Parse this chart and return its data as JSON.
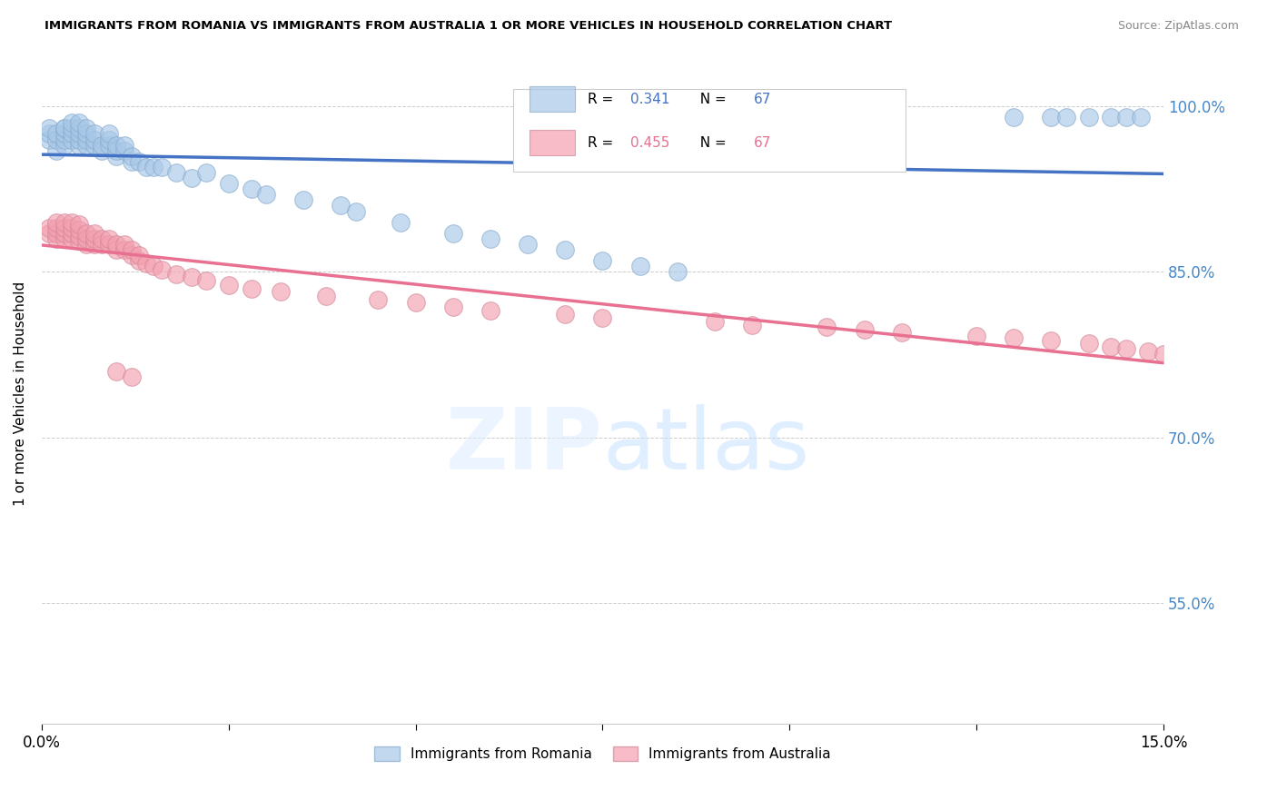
{
  "title": "IMMIGRANTS FROM ROMANIA VS IMMIGRANTS FROM AUSTRALIA 1 OR MORE VEHICLES IN HOUSEHOLD CORRELATION CHART",
  "source": "Source: ZipAtlas.com",
  "ylabel": "1 or more Vehicles in Household",
  "xlim": [
    0.0,
    0.15
  ],
  "ylim": [
    0.44,
    1.04
  ],
  "x_ticks": [
    0.0,
    0.025,
    0.05,
    0.075,
    0.1,
    0.125,
    0.15
  ],
  "y_ticks": [
    0.55,
    0.7,
    0.85,
    1.0
  ],
  "y_tick_labels": [
    "55.0%",
    "70.0%",
    "85.0%",
    "100.0%"
  ],
  "romania_R": 0.341,
  "romania_N": 67,
  "australia_R": 0.455,
  "australia_N": 67,
  "romania_color": "#a8c8e8",
  "australia_color": "#f4a0b0",
  "romania_line_color": "#4472c4",
  "australia_line_color": "#e87090",
  "background_color": "#ffffff",
  "grid_color": "#cccccc",
  "romania_x": [
    0.001,
    0.001,
    0.001,
    0.002,
    0.002,
    0.002,
    0.003,
    0.003,
    0.003,
    0.003,
    0.003,
    0.004,
    0.004,
    0.004,
    0.004,
    0.005,
    0.005,
    0.005,
    0.005,
    0.005,
    0.006,
    0.006,
    0.006,
    0.006,
    0.007,
    0.007,
    0.007,
    0.008,
    0.008,
    0.009,
    0.009,
    0.009,
    0.01,
    0.01,
    0.01,
    0.011,
    0.011,
    0.012,
    0.012,
    0.013,
    0.014,
    0.015,
    0.016,
    0.018,
    0.02,
    0.022,
    0.025,
    0.028,
    0.03,
    0.035,
    0.04,
    0.042,
    0.048,
    0.055,
    0.06,
    0.065,
    0.07,
    0.075,
    0.08,
    0.085,
    0.13,
    0.135,
    0.137,
    0.14,
    0.143,
    0.145,
    0.147
  ],
  "romania_y": [
    0.97,
    0.975,
    0.98,
    0.96,
    0.97,
    0.975,
    0.965,
    0.97,
    0.975,
    0.98,
    0.98,
    0.97,
    0.975,
    0.98,
    0.985,
    0.965,
    0.97,
    0.975,
    0.98,
    0.985,
    0.965,
    0.97,
    0.975,
    0.98,
    0.965,
    0.97,
    0.975,
    0.96,
    0.965,
    0.965,
    0.97,
    0.975,
    0.955,
    0.96,
    0.965,
    0.96,
    0.965,
    0.95,
    0.955,
    0.95,
    0.945,
    0.945,
    0.945,
    0.94,
    0.935,
    0.94,
    0.93,
    0.925,
    0.92,
    0.915,
    0.91,
    0.905,
    0.895,
    0.885,
    0.88,
    0.875,
    0.87,
    0.86,
    0.855,
    0.85,
    0.99,
    0.99,
    0.99,
    0.99,
    0.99,
    0.99,
    0.99
  ],
  "australia_x": [
    0.001,
    0.001,
    0.002,
    0.002,
    0.002,
    0.002,
    0.003,
    0.003,
    0.003,
    0.003,
    0.004,
    0.004,
    0.004,
    0.004,
    0.005,
    0.005,
    0.005,
    0.005,
    0.006,
    0.006,
    0.006,
    0.007,
    0.007,
    0.007,
    0.008,
    0.008,
    0.009,
    0.009,
    0.01,
    0.01,
    0.011,
    0.011,
    0.012,
    0.012,
    0.013,
    0.013,
    0.014,
    0.015,
    0.016,
    0.018,
    0.02,
    0.022,
    0.025,
    0.028,
    0.032,
    0.038,
    0.045,
    0.05,
    0.055,
    0.06,
    0.07,
    0.075,
    0.09,
    0.095,
    0.105,
    0.11,
    0.115,
    0.125,
    0.13,
    0.135,
    0.14,
    0.143,
    0.145,
    0.148,
    0.15,
    0.01,
    0.012
  ],
  "australia_y": [
    0.885,
    0.89,
    0.88,
    0.885,
    0.89,
    0.895,
    0.88,
    0.885,
    0.89,
    0.895,
    0.88,
    0.885,
    0.89,
    0.895,
    0.878,
    0.882,
    0.888,
    0.893,
    0.875,
    0.88,
    0.885,
    0.875,
    0.88,
    0.885,
    0.875,
    0.88,
    0.875,
    0.88,
    0.87,
    0.875,
    0.87,
    0.875,
    0.865,
    0.87,
    0.86,
    0.865,
    0.858,
    0.855,
    0.852,
    0.848,
    0.845,
    0.842,
    0.838,
    0.835,
    0.832,
    0.828,
    0.825,
    0.822,
    0.818,
    0.815,
    0.812,
    0.808,
    0.805,
    0.802,
    0.8,
    0.798,
    0.795,
    0.792,
    0.79,
    0.788,
    0.785,
    0.782,
    0.78,
    0.778,
    0.775,
    0.76,
    0.755
  ]
}
